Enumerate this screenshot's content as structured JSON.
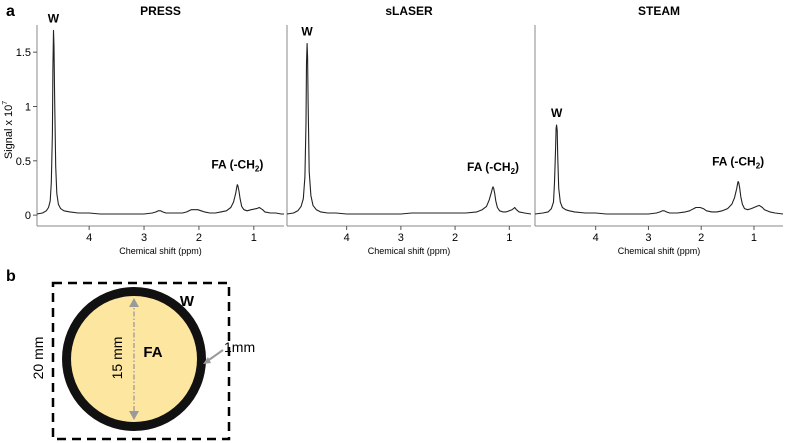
{
  "panels": {
    "a_label": "a",
    "b_label": "b"
  },
  "chart_data": [
    {
      "type": "line",
      "title": "PRESS",
      "xlabel": "Chemical shift (ppm)",
      "ylabel": "Signal x 10",
      "ylabel_exponent": "7",
      "xlim": [
        4.95,
        0.45
      ],
      "ylim": [
        -0.1,
        1.75
      ],
      "xticks": [
        4,
        3,
        2,
        1
      ],
      "yticks": [
        0,
        0.5,
        1,
        1.5
      ],
      "x_reversed": true,
      "series": [
        {
          "x": [
            4.95,
            4.85,
            4.78,
            4.74,
            4.71,
            4.69,
            4.67,
            4.66,
            4.65,
            4.64,
            4.63,
            4.61,
            4.59,
            4.56,
            4.52,
            4.46,
            4.35,
            4.2,
            4.0,
            3.8,
            3.6,
            3.4,
            3.2,
            3.0,
            2.85,
            2.78,
            2.74,
            2.7,
            2.66,
            2.6,
            2.45,
            2.3,
            2.22,
            2.18,
            2.14,
            2.1,
            2.06,
            2.02,
            1.96,
            1.9,
            1.8,
            1.7,
            1.6,
            1.5,
            1.42,
            1.37,
            1.33,
            1.31,
            1.3,
            1.29,
            1.27,
            1.25,
            1.22,
            1.18,
            1.12,
            1.05,
            0.95,
            0.9,
            0.87,
            0.84,
            0.8,
            0.7,
            0.6,
            0.5,
            0.45
          ],
          "y": [
            0.01,
            0.02,
            0.04,
            0.07,
            0.13,
            0.3,
            0.75,
            1.35,
            1.7,
            1.55,
            1.1,
            0.45,
            0.2,
            0.1,
            0.06,
            0.04,
            0.03,
            0.02,
            0.02,
            0.01,
            0.01,
            0.01,
            0.01,
            0.01,
            0.02,
            0.03,
            0.04,
            0.04,
            0.03,
            0.02,
            0.02,
            0.02,
            0.03,
            0.04,
            0.05,
            0.05,
            0.05,
            0.05,
            0.04,
            0.03,
            0.02,
            0.02,
            0.03,
            0.04,
            0.07,
            0.12,
            0.2,
            0.26,
            0.28,
            0.27,
            0.22,
            0.15,
            0.08,
            0.05,
            0.04,
            0.05,
            0.06,
            0.07,
            0.06,
            0.05,
            0.03,
            0.02,
            0.02,
            0.01,
            0.01
          ]
        }
      ],
      "annotations": [
        {
          "text": "W",
          "x": 4.65,
          "y": 1.7
        },
        {
          "text": "FA (-CH",
          "sub": "2",
          "tail": ")",
          "x": 1.3,
          "y": 0.28
        }
      ]
    },
    {
      "type": "line",
      "title": "sLASER",
      "xlabel": "Chemical shift (ppm)",
      "xlim": [
        5.1,
        0.6
      ],
      "ylim": [
        -0.1,
        1.75
      ],
      "xticks": [
        4,
        3,
        2,
        1
      ],
      "x_reversed": true,
      "series": [
        {
          "x": [
            5.1,
            4.98,
            4.9,
            4.84,
            4.8,
            4.77,
            4.75,
            4.74,
            4.73,
            4.72,
            4.71,
            4.69,
            4.66,
            4.62,
            4.56,
            4.48,
            4.35,
            4.2,
            4.0,
            3.8,
            3.6,
            3.4,
            3.2,
            3.0,
            2.8,
            2.6,
            2.4,
            2.2,
            2.0,
            1.8,
            1.6,
            1.5,
            1.42,
            1.37,
            1.33,
            1.31,
            1.3,
            1.29,
            1.27,
            1.25,
            1.22,
            1.18,
            1.12,
            1.06,
            1.0,
            0.95,
            0.92,
            0.9,
            0.87,
            0.82,
            0.72,
            0.6
          ],
          "y": [
            0.01,
            0.02,
            0.04,
            0.08,
            0.15,
            0.35,
            0.85,
            1.4,
            1.58,
            1.45,
            1.05,
            0.4,
            0.18,
            0.09,
            0.05,
            0.03,
            0.02,
            0.02,
            0.01,
            0.01,
            0.01,
            0.01,
            0.01,
            0.01,
            0.02,
            0.02,
            0.02,
            0.02,
            0.02,
            0.02,
            0.03,
            0.05,
            0.08,
            0.14,
            0.21,
            0.25,
            0.26,
            0.25,
            0.2,
            0.13,
            0.07,
            0.04,
            0.03,
            0.03,
            0.04,
            0.05,
            0.06,
            0.07,
            0.05,
            0.03,
            0.02,
            0.01
          ]
        }
      ],
      "annotations": [
        {
          "text": "W",
          "x": 4.73,
          "y": 1.58
        },
        {
          "text": "FA (-CH",
          "sub": "2",
          "tail": ")",
          "x": 1.3,
          "y": 0.26
        }
      ]
    },
    {
      "type": "line",
      "title": "STEAM",
      "xlabel": "Chemical shift (ppm)",
      "xlim": [
        5.15,
        0.45
      ],
      "ylim": [
        -0.1,
        1.75
      ],
      "xticks": [
        4,
        3,
        2,
        1
      ],
      "x_reversed": true,
      "series": [
        {
          "x": [
            5.15,
            5.0,
            4.9,
            4.84,
            4.8,
            4.78,
            4.76,
            4.75,
            4.74,
            4.73,
            4.72,
            4.7,
            4.67,
            4.63,
            4.57,
            4.5,
            4.4,
            4.2,
            4.0,
            3.8,
            3.6,
            3.4,
            3.2,
            3.0,
            2.85,
            2.78,
            2.74,
            2.7,
            2.66,
            2.6,
            2.45,
            2.3,
            2.22,
            2.18,
            2.14,
            2.1,
            2.06,
            2.02,
            1.96,
            1.9,
            1.8,
            1.7,
            1.6,
            1.5,
            1.42,
            1.37,
            1.33,
            1.31,
            1.3,
            1.29,
            1.27,
            1.25,
            1.22,
            1.18,
            1.12,
            1.05,
            0.95,
            0.9,
            0.87,
            0.84,
            0.8,
            0.7,
            0.6,
            0.45
          ],
          "y": [
            0.01,
            0.02,
            0.03,
            0.06,
            0.12,
            0.3,
            0.62,
            0.8,
            0.83,
            0.78,
            0.55,
            0.25,
            0.12,
            0.07,
            0.05,
            0.04,
            0.03,
            0.02,
            0.02,
            0.01,
            0.01,
            0.01,
            0.01,
            0.01,
            0.02,
            0.03,
            0.04,
            0.04,
            0.03,
            0.02,
            0.02,
            0.03,
            0.04,
            0.05,
            0.06,
            0.07,
            0.07,
            0.07,
            0.06,
            0.04,
            0.03,
            0.03,
            0.04,
            0.06,
            0.1,
            0.16,
            0.24,
            0.29,
            0.31,
            0.3,
            0.25,
            0.17,
            0.1,
            0.06,
            0.05,
            0.06,
            0.08,
            0.09,
            0.08,
            0.07,
            0.05,
            0.03,
            0.02,
            0.01
          ]
        }
      ],
      "annotations": [
        {
          "text": "W",
          "x": 4.74,
          "y": 0.83
        },
        {
          "text": "FA (-CH",
          "sub": "2",
          "tail": ")",
          "x": 1.3,
          "y": 0.31
        }
      ]
    }
  ],
  "phantom": {
    "outer_dimension": "20 mm",
    "inner_dimension": "15 mm",
    "wall_thickness": "1mm",
    "outer_label": "W",
    "inner_label": "FA",
    "colors": {
      "fat": "#fde6a0",
      "water_wall": "#111111",
      "arrow": "#9a9a9a"
    }
  }
}
